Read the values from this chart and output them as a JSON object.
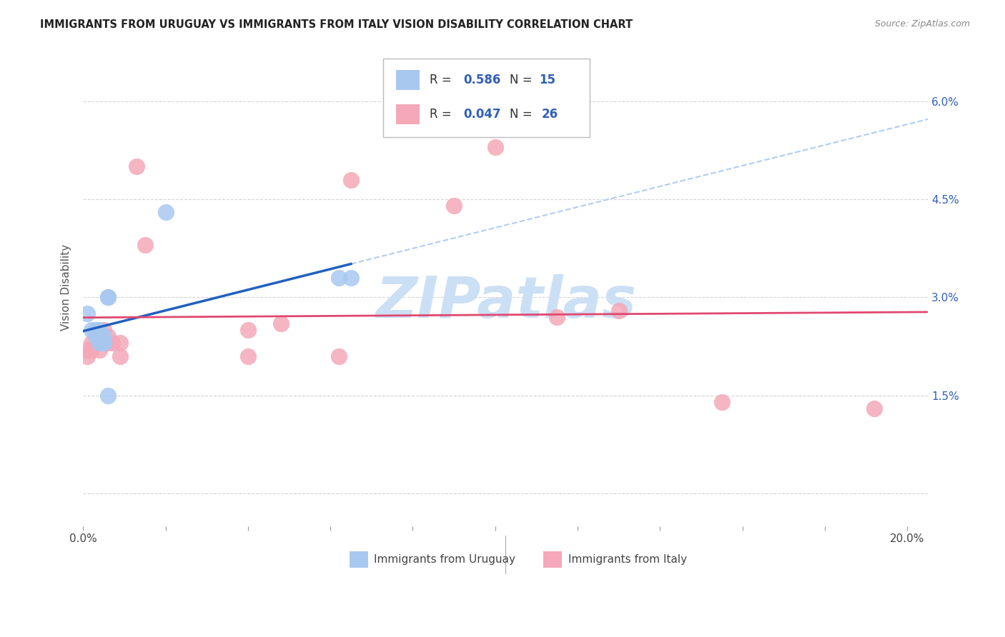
{
  "title": "IMMIGRANTS FROM URUGUAY VS IMMIGRANTS FROM ITALY VISION DISABILITY CORRELATION CHART",
  "source": "Source: ZipAtlas.com",
  "ylabel": "Vision Disability",
  "xlim": [
    0.0,
    0.205
  ],
  "ylim": [
    -0.005,
    0.068
  ],
  "xticks": [
    0.0,
    0.02,
    0.04,
    0.06,
    0.08,
    0.1,
    0.12,
    0.14,
    0.16,
    0.18,
    0.2
  ],
  "xtick_labels": [
    "0.0%",
    "",
    "",
    "",
    "",
    "",
    "",
    "",
    "",
    "",
    "20.0%"
  ],
  "yticks": [
    0.0,
    0.015,
    0.03,
    0.045,
    0.06
  ],
  "ytick_labels": [
    "",
    "1.5%",
    "3.0%",
    "4.5%",
    "6.0%"
  ],
  "uruguay_fill": "#a8c8f0",
  "italy_fill": "#f4a8b8",
  "uruguay_line": "#2060c0",
  "italy_line": "#e04870",
  "dash_color": "#a8c8f0",
  "legend_text_color": "#3060b8",
  "watermark_color": "#cce0f5",
  "uruguay_x": [
    0.001,
    0.002,
    0.003,
    0.003,
    0.004,
    0.004,
    0.005,
    0.005,
    0.005,
    0.006,
    0.006,
    0.006,
    0.02,
    0.062,
    0.065
  ],
  "uruguay_y": [
    0.0275,
    0.025,
    0.025,
    0.024,
    0.023,
    0.025,
    0.023,
    0.024,
    0.023,
    0.03,
    0.03,
    0.015,
    0.043,
    0.033,
    0.033
  ],
  "italy_x": [
    0.001,
    0.001,
    0.002,
    0.002,
    0.003,
    0.004,
    0.005,
    0.005,
    0.006,
    0.006,
    0.007,
    0.009,
    0.009,
    0.013,
    0.015,
    0.04,
    0.04,
    0.048,
    0.062,
    0.065,
    0.09,
    0.1,
    0.115,
    0.13,
    0.155,
    0.192
  ],
  "italy_y": [
    0.021,
    0.022,
    0.022,
    0.023,
    0.024,
    0.022,
    0.023,
    0.025,
    0.023,
    0.024,
    0.023,
    0.021,
    0.023,
    0.05,
    0.038,
    0.025,
    0.021,
    0.026,
    0.021,
    0.048,
    0.044,
    0.053,
    0.027,
    0.028,
    0.014,
    0.013
  ],
  "figsize": [
    14.06,
    8.92
  ],
  "dpi": 100
}
